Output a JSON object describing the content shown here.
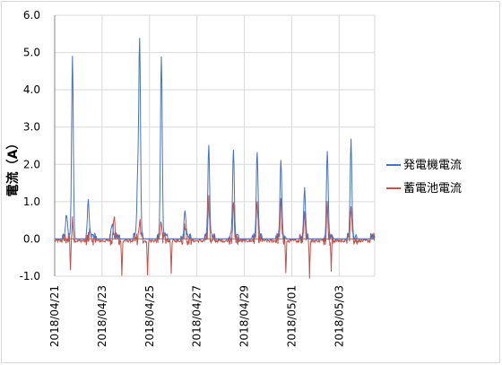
{
  "chart_data": {
    "type": "line",
    "ylabel": "電流（A）",
    "ylim": [
      -1.0,
      6.0
    ],
    "ytick_values": [
      -1.0,
      0.0,
      1.0,
      2.0,
      3.0,
      4.0,
      5.0,
      6.0
    ],
    "ytick_labels": [
      "-1.0",
      "0.0",
      "1.0",
      "2.0",
      "3.0",
      "4.0",
      "5.0",
      "6.0"
    ],
    "xlim": [
      "2018/04/21",
      "2018/05/04 12:00"
    ],
    "xtick_labels": [
      "2018/04/21",
      "2018/04/23",
      "2018/04/25",
      "2018/04/27",
      "2018/04/29",
      "2018/05/01",
      "2018/05/03"
    ],
    "grid": true,
    "legend_position": "right",
    "series": [
      {
        "name": "発電機電流",
        "color": "#4472c4",
        "peaks": [
          {
            "date": "2018/04/21 12:00",
            "value": 0.6
          },
          {
            "date": "2018/04/21 18:00",
            "value": 4.85
          },
          {
            "date": "2018/04/22 10:00",
            "value": 0.95
          },
          {
            "date": "2018/04/23 10:00",
            "value": 0.35
          },
          {
            "date": "2018/04/24 12:00",
            "value": 1.5
          },
          {
            "date": "2018/04/24 14:00",
            "value": 5.28
          },
          {
            "date": "2018/04/25 12:00",
            "value": 4.85
          },
          {
            "date": "2018/04/26 12:00",
            "value": 0.7
          },
          {
            "date": "2018/04/27 12:00",
            "value": 2.5
          },
          {
            "date": "2018/04/28 13:00",
            "value": 2.35
          },
          {
            "date": "2018/04/29 13:00",
            "value": 2.3
          },
          {
            "date": "2018/04/30 13:00",
            "value": 2.1
          },
          {
            "date": "2018/05/01 13:00",
            "value": 1.3
          },
          {
            "date": "2018/05/02 12:00",
            "value": 2.28
          },
          {
            "date": "2018/05/03 12:00",
            "value": 2.55
          }
        ]
      },
      {
        "name": "蓄電池電流",
        "color": "#c0504d",
        "peaks": [
          {
            "date": "2018/04/21 18:00",
            "value": 0.45
          },
          {
            "date": "2018/04/22 12:00",
            "value": 0.35
          },
          {
            "date": "2018/04/23 12:00",
            "value": 0.6
          },
          {
            "date": "2018/04/24 14:00",
            "value": 0.55
          },
          {
            "date": "2018/04/25 12:00",
            "value": 0.5
          },
          {
            "date": "2018/04/26 12:00",
            "value": 0.45
          },
          {
            "date": "2018/04/27 12:00",
            "value": 1.05
          },
          {
            "date": "2018/04/28 13:00",
            "value": 0.95
          },
          {
            "date": "2018/04/29 13:00",
            "value": 0.95
          },
          {
            "date": "2018/04/30 13:00",
            "value": 0.95
          },
          {
            "date": "2018/05/01 13:00",
            "value": 0.75
          },
          {
            "date": "2018/05/02 12:00",
            "value": 0.95
          },
          {
            "date": "2018/05/03 12:00",
            "value": 0.95
          }
        ],
        "troughs": [
          {
            "date": "2018/04/21 16:00",
            "value": -0.7
          },
          {
            "date": "2018/04/23 20:00",
            "value": -0.95
          },
          {
            "date": "2018/04/24 22:00",
            "value": -0.9
          },
          {
            "date": "2018/04/25 22:00",
            "value": -0.85
          },
          {
            "date": "2018/04/30 18:00",
            "value": -1.0
          },
          {
            "date": "2018/05/01 18:00",
            "value": -1.0
          },
          {
            "date": "2018/05/02 16:00",
            "value": -0.85
          }
        ]
      }
    ]
  }
}
